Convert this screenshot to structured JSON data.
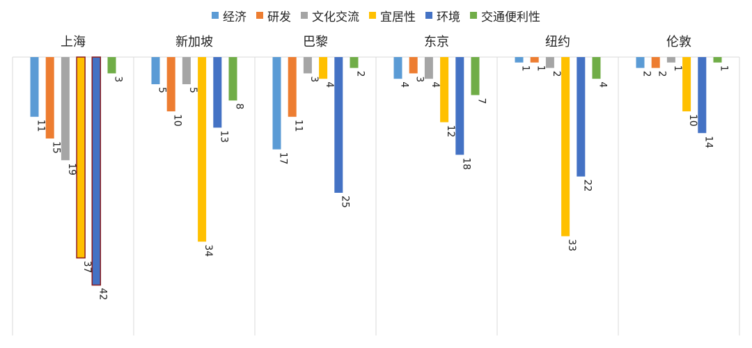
{
  "legend": {
    "items": [
      {
        "label": "经济",
        "color": "#5B9BD5"
      },
      {
        "label": "研发",
        "color": "#ED7D31"
      },
      {
        "label": "文化交流",
        "color": "#A5A5A5"
      },
      {
        "label": "宜居性",
        "color": "#FFC000"
      },
      {
        "label": "环境",
        "color": "#4472C4"
      },
      {
        "label": "交通便利性",
        "color": "#70AD47"
      }
    ]
  },
  "chart_data": {
    "type": "bar",
    "orientation": "vertical-downward",
    "categories": [
      "上海",
      "新加坡",
      "巴黎",
      "东京",
      "纽约",
      "伦敦"
    ],
    "series": [
      {
        "name": "经济",
        "color": "#5B9BD5",
        "values": [
          11,
          5,
          17,
          4,
          1,
          2
        ]
      },
      {
        "name": "研发",
        "color": "#ED7D31",
        "values": [
          15,
          10,
          11,
          3,
          1,
          2
        ]
      },
      {
        "name": "文化交流",
        "color": "#A5A5A5",
        "values": [
          19,
          5,
          3,
          4,
          2,
          1
        ]
      },
      {
        "name": "宜居性",
        "color": "#FFC000",
        "values": [
          37,
          34,
          4,
          12,
          33,
          10
        ]
      },
      {
        "name": "环境",
        "color": "#4472C4",
        "values": [
          42,
          13,
          25,
          18,
          22,
          14
        ]
      },
      {
        "name": "交通便利性",
        "color": "#70AD47",
        "values": [
          3,
          8,
          2,
          7,
          4,
          1
        ]
      }
    ],
    "highlighted_bars": [
      {
        "category": "上海",
        "series": "宜居性"
      },
      {
        "category": "上海",
        "series": "环境"
      }
    ],
    "highlight_border_color": "#8B1A1A",
    "data_labels": true,
    "grid": false,
    "legend_position": "top",
    "ylim": [
      0,
      45
    ]
  }
}
